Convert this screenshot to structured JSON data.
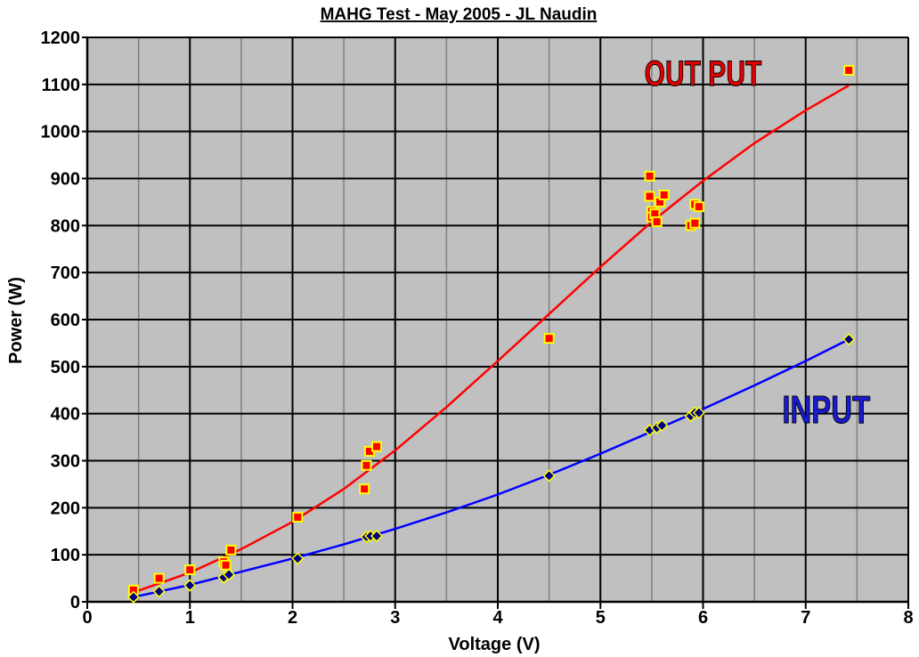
{
  "chart_data": {
    "type": "scatter",
    "title": "MAHG Test - May 2005 - JL Naudin",
    "xlabel": "Voltage (V)",
    "ylabel": "Power (W)",
    "xlim": [
      0,
      8
    ],
    "ylim": [
      0,
      1200
    ],
    "x_ticks": [
      "0",
      "1",
      "2",
      "3",
      "4",
      "5",
      "6",
      "7",
      "8"
    ],
    "y_ticks": [
      "0",
      "100",
      "200",
      "300",
      "400",
      "500",
      "600",
      "700",
      "800",
      "900",
      "1000",
      "1100",
      "1200"
    ],
    "grid": true,
    "background_color": "#c0c0c0",
    "annotations": [
      {
        "text": "OUT PUT",
        "color": "#e00000",
        "x": 6.0,
        "y": 1098
      },
      {
        "text": "INPUT",
        "color": "#1a1ad0",
        "x": 7.2,
        "y": 380
      }
    ],
    "series": [
      {
        "name": "OUT PUT",
        "color": "#ff0000",
        "marker_edge": "#ffff00",
        "trend_color": "#ff0000",
        "points": [
          {
            "x": 0.45,
            "y": 25
          },
          {
            "x": 0.7,
            "y": 50
          },
          {
            "x": 1.0,
            "y": 68
          },
          {
            "x": 1.33,
            "y": 85
          },
          {
            "x": 1.35,
            "y": 78
          },
          {
            "x": 1.4,
            "y": 110
          },
          {
            "x": 2.05,
            "y": 180
          },
          {
            "x": 2.7,
            "y": 240
          },
          {
            "x": 2.72,
            "y": 290
          },
          {
            "x": 2.75,
            "y": 320
          },
          {
            "x": 2.82,
            "y": 330
          },
          {
            "x": 4.5,
            "y": 560
          },
          {
            "x": 5.48,
            "y": 905
          },
          {
            "x": 5.48,
            "y": 862
          },
          {
            "x": 5.5,
            "y": 830
          },
          {
            "x": 5.5,
            "y": 818
          },
          {
            "x": 5.53,
            "y": 825
          },
          {
            "x": 5.55,
            "y": 808
          },
          {
            "x": 5.58,
            "y": 850
          },
          {
            "x": 5.62,
            "y": 865
          },
          {
            "x": 5.88,
            "y": 800
          },
          {
            "x": 5.92,
            "y": 805
          },
          {
            "x": 5.92,
            "y": 845
          },
          {
            "x": 5.96,
            "y": 840
          },
          {
            "x": 7.42,
            "y": 1130
          }
        ],
        "trend": [
          {
            "x": 0.45,
            "y": 20
          },
          {
            "x": 1.0,
            "y": 62
          },
          {
            "x": 1.5,
            "y": 112
          },
          {
            "x": 2.0,
            "y": 170
          },
          {
            "x": 2.5,
            "y": 240
          },
          {
            "x": 3.0,
            "y": 322
          },
          {
            "x": 3.5,
            "y": 414
          },
          {
            "x": 4.0,
            "y": 512
          },
          {
            "x": 4.5,
            "y": 612
          },
          {
            "x": 5.0,
            "y": 712
          },
          {
            "x": 5.5,
            "y": 808
          },
          {
            "x": 6.0,
            "y": 895
          },
          {
            "x": 6.5,
            "y": 975
          },
          {
            "x": 7.0,
            "y": 1045
          },
          {
            "x": 7.42,
            "y": 1098
          }
        ]
      },
      {
        "name": "INPUT",
        "color": "#000080",
        "marker_edge": "#ffff00",
        "trend_color": "#0000ff",
        "points": [
          {
            "x": 0.45,
            "y": 10
          },
          {
            "x": 0.7,
            "y": 22
          },
          {
            "x": 1.0,
            "y": 35
          },
          {
            "x": 1.33,
            "y": 52
          },
          {
            "x": 1.38,
            "y": 58
          },
          {
            "x": 2.05,
            "y": 92
          },
          {
            "x": 2.72,
            "y": 138
          },
          {
            "x": 2.76,
            "y": 140
          },
          {
            "x": 2.82,
            "y": 140
          },
          {
            "x": 4.5,
            "y": 268
          },
          {
            "x": 5.48,
            "y": 365
          },
          {
            "x": 5.55,
            "y": 370
          },
          {
            "x": 5.6,
            "y": 375
          },
          {
            "x": 5.88,
            "y": 395
          },
          {
            "x": 5.92,
            "y": 402
          },
          {
            "x": 5.96,
            "y": 402
          },
          {
            "x": 7.42,
            "y": 558
          }
        ],
        "trend": [
          {
            "x": 0.45,
            "y": 10
          },
          {
            "x": 1.0,
            "y": 36
          },
          {
            "x": 1.5,
            "y": 64
          },
          {
            "x": 2.0,
            "y": 92
          },
          {
            "x": 2.5,
            "y": 122
          },
          {
            "x": 3.0,
            "y": 155
          },
          {
            "x": 3.5,
            "y": 190
          },
          {
            "x": 4.0,
            "y": 228
          },
          {
            "x": 4.5,
            "y": 270
          },
          {
            "x": 5.0,
            "y": 315
          },
          {
            "x": 5.5,
            "y": 362
          },
          {
            "x": 6.0,
            "y": 410
          },
          {
            "x": 6.5,
            "y": 460
          },
          {
            "x": 7.0,
            "y": 512
          },
          {
            "x": 7.42,
            "y": 558
          }
        ]
      }
    ]
  }
}
